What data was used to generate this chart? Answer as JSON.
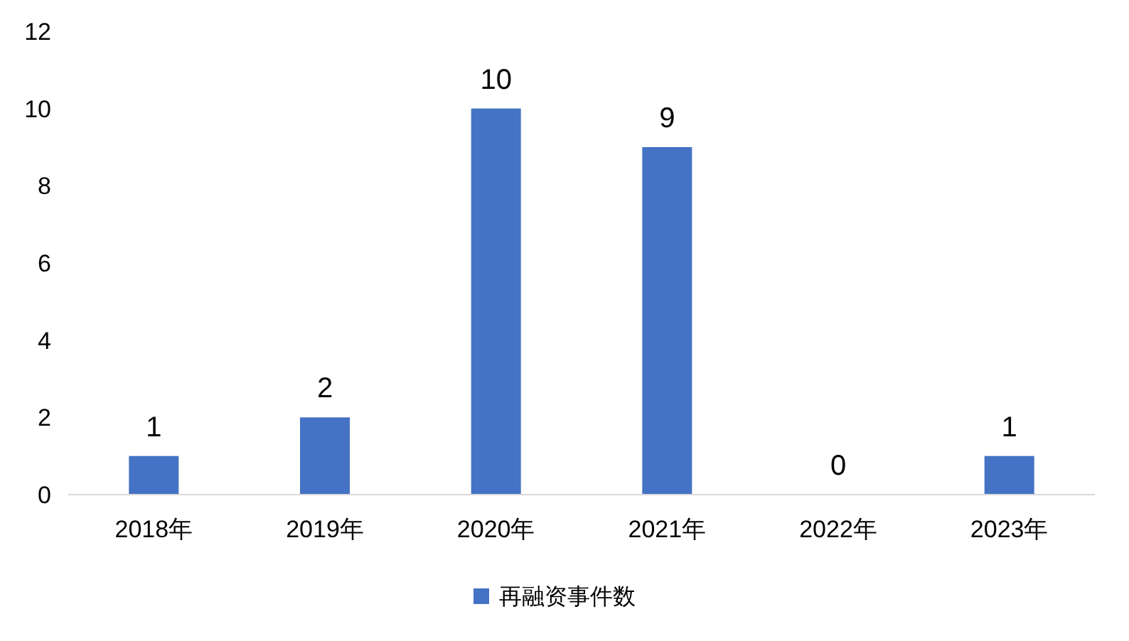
{
  "chart_data": {
    "type": "bar",
    "categories": [
      "2018年",
      "2019年",
      "2020年",
      "2021年",
      "2022年",
      "2023年"
    ],
    "series": [
      {
        "name": "再融资事件数",
        "color": "#4472c4",
        "values": [
          1,
          2,
          10,
          9,
          0,
          1
        ]
      }
    ],
    "ylim": [
      0,
      12
    ],
    "yticks": [
      0,
      2,
      4,
      6,
      8,
      10,
      12
    ],
    "grid": false,
    "legend": "bottom",
    "data_labels": true
  }
}
